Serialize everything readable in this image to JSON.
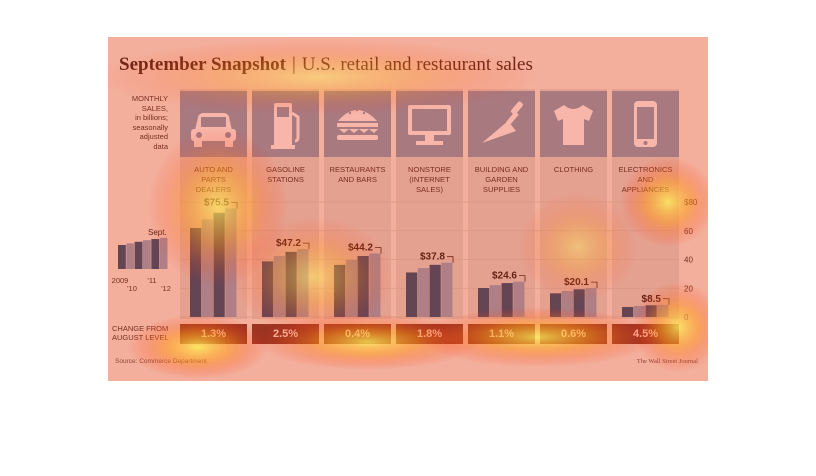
{
  "header": {
    "title_bold": "September Snapshot",
    "separator": "|",
    "title_rest": "U.S. retail and restaurant sales"
  },
  "note": {
    "lines": [
      "MONTHLY",
      "SALES,",
      "in billions;",
      "seasonally",
      "adjusted",
      "data"
    ]
  },
  "overview": {
    "sept_label": "Sept.",
    "year_labels": [
      "2009",
      "'10",
      "'11",
      "'12"
    ]
  },
  "change": {
    "label_lines": [
      "CHANGE FROM",
      "AUGUST LEVEL"
    ]
  },
  "footer": {
    "source": "Source: Commerce Department",
    "credit": "The Wall Street Journal"
  },
  "colors": {
    "bar_dark": "#1b4b6e",
    "bar_light": "#8aa0b6",
    "tile": "#7f97ad",
    "change_box": "#6c3122"
  },
  "chart_data": {
    "type": "bar",
    "title": "September Snapshot | U.S. retail and restaurant sales",
    "ylabel": "",
    "yticks": [
      "$80",
      "60",
      "40",
      "20",
      "0"
    ],
    "ylim": [
      0,
      80
    ],
    "categories": [
      {
        "id": "auto",
        "icon": "car-icon",
        "label_lines": [
          "AUTO AND",
          "PARTS",
          "DEALERS"
        ],
        "value": 75.5,
        "value_label": "$75.5",
        "change": "1.3%"
      },
      {
        "id": "gasoline",
        "icon": "gas-pump-icon",
        "label_lines": [
          "GASOLINE",
          "STATIONS"
        ],
        "value": 47.2,
        "value_label": "$47.2",
        "change": "2.5%"
      },
      {
        "id": "restaurants",
        "icon": "burger-icon",
        "label_lines": [
          "RESTAURANTS",
          "AND BARS"
        ],
        "value": 44.2,
        "value_label": "$44.2",
        "change": "0.4%"
      },
      {
        "id": "nonstore",
        "icon": "computer-icon",
        "label_lines": [
          "NONSTORE",
          "(INTERNET",
          "SALES)"
        ],
        "value": 37.8,
        "value_label": "$37.8",
        "change": "1.8%"
      },
      {
        "id": "building",
        "icon": "trowel-icon",
        "label_lines": [
          "BUILDING AND",
          "GARDEN",
          "SUPPLIES"
        ],
        "value": 24.6,
        "value_label": "$24.6",
        "change": "1.1%"
      },
      {
        "id": "clothing",
        "icon": "tshirt-icon",
        "label_lines": [
          "CLOTHING"
        ],
        "value": 20.1,
        "value_label": "$20.1",
        "change": "0.6%"
      },
      {
        "id": "electronics",
        "icon": "smartphone-icon",
        "label_lines": [
          "ELECTRONICS",
          "AND",
          "APPLIANCES"
        ],
        "value": 8.5,
        "value_label": "$8.5",
        "change": "4.5%"
      }
    ]
  }
}
